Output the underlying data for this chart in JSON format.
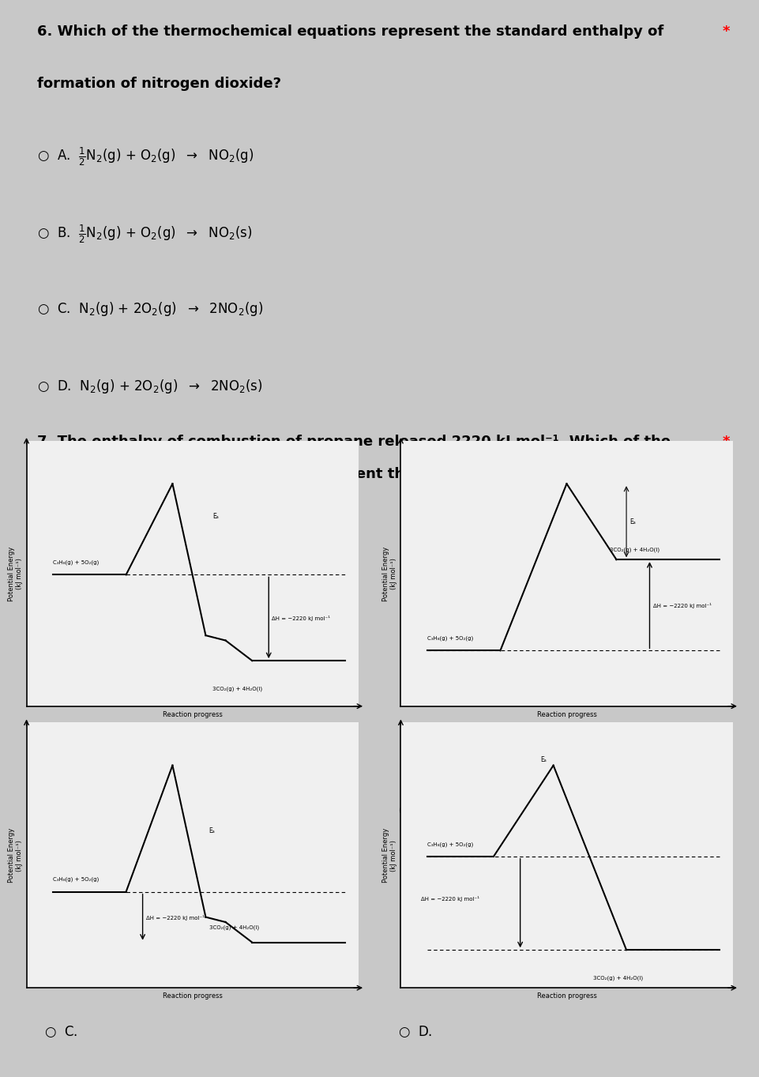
{
  "bg_outer": "#c8c8c8",
  "bg_q6": "#f8f8f8",
  "bg_q7": "#e8e8e8",
  "bg_diagram": "#f0f0f0",
  "q6_line1": "6. Which of the thermochemical equations represent the standard enthalpy of",
  "q6_line2": "formation of nitrogen dioxide?",
  "q7_line1": "7. The enthalpy of combustion of propane released 2220 kJ mol⁻¹. Which of the",
  "q7_line2": "following energy profile diagram represent the enthalpy?",
  "optA": "A.  ½ N₂(g) + O₂(g)  →  NO₂(g)",
  "optB": "B.  ½ N₂(g) + O₂(g)  →  NO₂(s)",
  "optC": "C.  N₂(g) + 2O₂(g)  →  2NO₂(g)",
  "optD": "D.  N₂(g) + 2O₂(g)  →  2NO₂(s)",
  "ylabel": "Potential Energy\n(kJ mol⁻¹)",
  "xlabel": "Reaction progress",
  "reactant": "C₃H₈(g) + 5O₂(g)",
  "product": "3CO₂(g) + 4H₂O(l)",
  "Ea_label": "Eₐ",
  "dH_label": "ΔH = −2220 kJ mol⁻¹"
}
